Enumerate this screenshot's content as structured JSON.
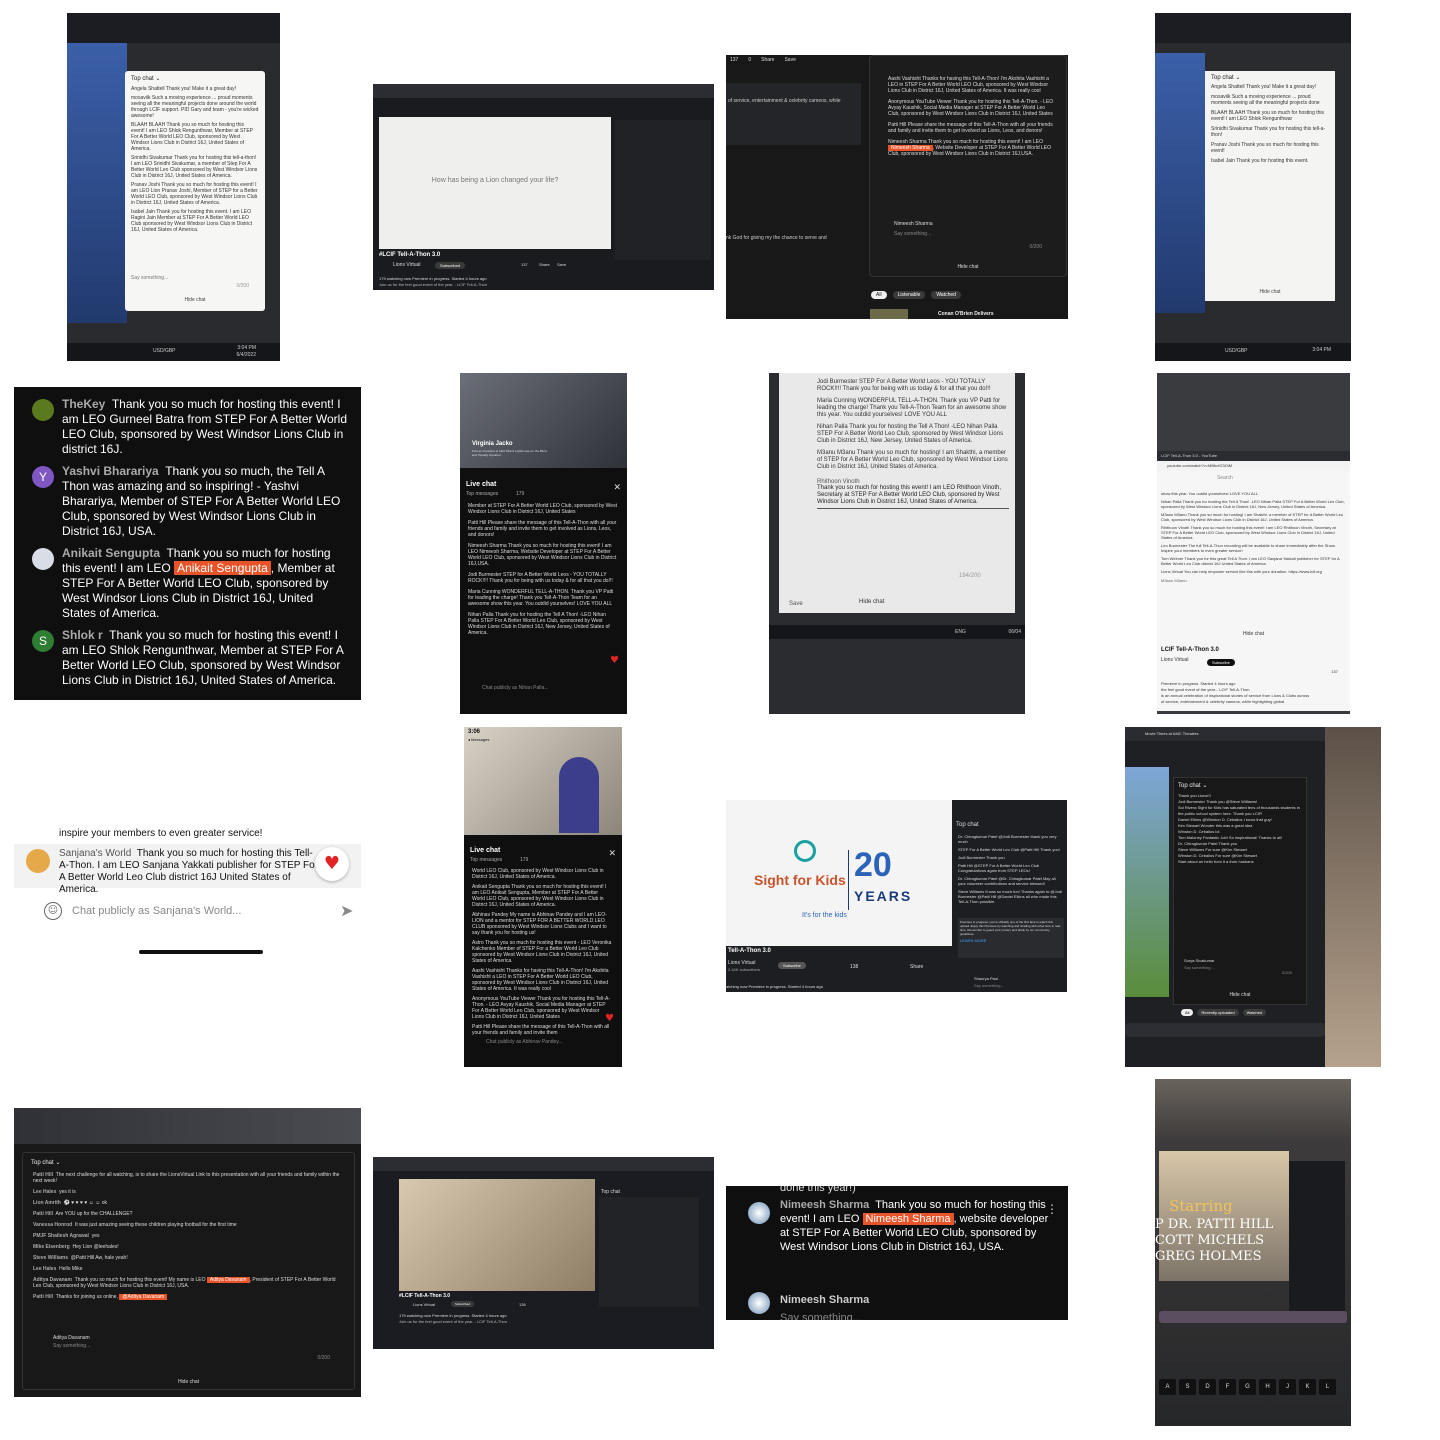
{
  "tile_a": {
    "top_chat": "Top chat ⌄",
    "messages": [
      "Angela Shattell  Thank you! Make it a great day!",
      "mosaviik  Such a moving experience ... proud moments seeing all the meaningful projects done around the world through LCIF support. PID Gary and team - you're wicked awesome!",
      "BLAAH BLAAH  Thank you so much for hosting this event! I am LEO Shlok Rengunthwar, Member at STEP For A Better World LEO Club, sponsored by West Windsor Lions Club in District 16J, United States of America.",
      "Srinidhi Sivakumar  Thank you for hosting this tell-a-thon! I am LEO Srinidhi Sivakumar, a member of Step For A Better World Leo Club sponsored by West Windsor Lions Club in District 16J, United States of America.",
      "Pranav Joshi  Thank you so much for hosting this event! I am LEO Lion Pranav Joshi, Member of STEP for a Better World LEO Club, sponsored by West Windsor Lions Club in District 16J, United States of America.",
      "Isabel Jain  Thank you for hosting this event. I am LEO Ragini Jain Member at STEP For A Better World LEO Club sponsored by West Windsor Lions Club in District 16J, United States of America."
    ],
    "say_something": "Say something...",
    "hide_chat": "Hide chat",
    "counter": "0/200",
    "taskbar_time": "3:04 PM",
    "taskbar_date": "6/4/2022",
    "ticker": "USD/GBP"
  },
  "tile_b": {
    "prompt": "How has being a Lion changed your life?",
    "video_title": "#LCIF Tell-A-Thon 3.0",
    "channel": "Lions Virtual",
    "subscribed": "Subscribed",
    "likes": "137",
    "share": "Share",
    "save": "Save",
    "watching": "179 watching now  Premiere in progress. Started 4 hours ago",
    "desc": "Join us for the feel good event of the year... LCIF Tell-A-Thon"
  },
  "tile_c": {
    "toolbar": [
      "137",
      "0",
      "Share",
      "Save"
    ],
    "desc_snippet": "of service, entertainment & celebrity cameos, while",
    "thanks_snippet": "nk God for giving my the chance to serve and",
    "messages": [
      "Aashi Vashisht  Thanks for having this Tell-A-Thon! I'm Akshita Vashisht a LEO in STEP For A Better World LEO Club, sponsored by West Windsor Lions Club in District 16J, United States of America. It was really cool",
      "Anonymous YouTube Viewer  Thank you for hosting this Tell-A-Thon. - LEO Avyay Kaushik, Social Media Manager at STEP For A Better World Leo Club, sponsored by West Windsor Lions Club in District 16J, United States",
      "Patti Hill  Please share the message of this Tell-A-Thon with all your friends and family and invite them to get involved as Lions, Leos, and donors!"
    ],
    "nimeesh_pre": "Nimeesh Sharma  Thank you so much for hosting this event! I am LEO ",
    "nimeesh_hl": "Nimeesh Sharma",
    "nimeesh_post": ", Website Developer at STEP For A Better World LEO Club, sponsored by West Windsor Lions Club in District 16J,USA.",
    "composer_name": "Nimeesh Sharma",
    "say_something": "Say something...",
    "counter": "0/200",
    "hide_chat": "Hide chat",
    "chips": [
      "All",
      "Listenable",
      "Watched"
    ],
    "next_video": "Conan O'Brien Delivers"
  },
  "tile_d": {
    "top_chat": "Top chat ⌄",
    "lines": [
      "Angela Shattell  Thank you! Make it a great day!",
      "mosaviik  Such a moving experience ... proud moments seeing all the meaningful projects done",
      "BLAAH BLAAH  Thank you so much for hosting this event! I am LEO Shlok Rengunthwar",
      "Srinidhi Sivakumar  Thank you for hosting this tell-a-thon!",
      "Pranav Joshi  Thank you so much for hosting this event!",
      "Isabel Jain  Thank you for hosting this event."
    ],
    "hide_chat": "Hide chat",
    "taskbar_time": "3:04 PM",
    "ticker": "USD/GBP"
  },
  "tile_e": {
    "messages": [
      {
        "name": "TheKey",
        "text": "Thank you so much for hosting this event! I am LEO Gurneel Batra from STEP For A Better World LEO Club, sponsored by West Windsor Lions Club in district 16J.",
        "avatar": "#5b7a1e"
      },
      {
        "name": "Yashvi Bharariya",
        "text": "Thank you so much, the Tell A Thon was amazing and so inspiring! - Yashvi Bharariya, Member of STEP For A Better World LEO Club, sponsored by West Windsor Lions Club in District 16J, USA.",
        "avatar": "#7e57c2",
        "initial": "Y"
      },
      {
        "name": "Anikait Sengupta",
        "pre": "Thank you so much for hosting this event! I am LEO ",
        "hl": "Anikait Sengupta",
        "post": ", Member at STEP For A Better World LEO Club, sponsored by West Windsor Lions Club in District 16J, United States of America.",
        "avatar": "#d9dde6"
      },
      {
        "name": "Shlok r",
        "text": "Thank you so much for hosting this event! I am LEO Shlok Rengunthwar, Member at STEP For A Better World LEO Club, sponsored by West Windsor Lions Club in District 16J, United States of America.",
        "avatar": "#2e7d32",
        "initial": "S"
      }
    ]
  },
  "tile_f": {
    "speaker_name": "Virginia Jacko",
    "speaker_title": "Former President & CEO Miami Lighthouse for the Blind and Visually Impaired",
    "live_chat": "Live chat",
    "top_messages": "Top messages",
    "viewers": "179",
    "messages": [
      "Member at STEP For A Better World LEO Club, sponsored by West Windsor Lions Club in District 16J, United States",
      "Patti Hill  Please share the message of this Tell-A-Thon with all your friends and family and invite them to get involved as Lions, Leos, and donors!",
      "Nimeesh Sharma  Thank you so much for hosting this event! I am LEO Nimeesh Sharma, Website Developer at STEP For A Better World LEO Club, sponsored by West Windsor Lions Club in District 16J,USA.",
      "Jodi Burmester  STEP for A Better World Leos - YOU TOTALLY ROCK!!!! Thank you for being with us today & for all that you do!!!",
      "Maria Cunning  WONDERFUL TELL-A-THON. Thank you VP Patti for leading the charge! Thank you Tell-A-Thon Team for an awesome show this year. You outdid yourselves! LOVE YOU ALL",
      "Nihan Palla  Thank you for hosting the Tell A Thon! -LEO Nihan Palla STEP For A Better World Leo Club, sponsored by West Windsor Lions Club in District 16J, New Jersey, United States of America."
    ],
    "composer": "Chat publicly as Nihan Palla..."
  },
  "tile_g": {
    "messages": [
      "Jodi Burmester  STEP For A Better World Leos - YOU TOTALLY ROCK!!!! Thank you for being with us today & for all that you do!!!",
      "Maria Cunning  WONDERFUL TELL-A-THON. Thank you VP Patti for leading the charge! Thank you Tell-A-Thon Team for an awesome show this year. You outdid yourselves! LOVE YOU ALL",
      "Nihan Palla  Thank you for hosting the Tell A Thon! -LEO Nihan Palla STEP For A Better World Leo Club, sponsored by West Windsor Lions Club in District 16J, New Jersey, United States of America.",
      "M3anu M3anu  Thank you so much for hosting! I am Shakthi, a member of STEP for A Better World Leo Club, sponsored by West Windsor Lions Club in District 16J, United States of America."
    ],
    "composer_name": "Rhithoon Vinoth",
    "composer_text": "Thank you so much for hosting this event! I am LEO Rhithoon Vinoth, Secretary at STEP For A Better World LEO Club, sponsored by West Windsor Lions Club in District 16J, United States of America.",
    "counter": "194/200",
    "save": "Save",
    "hide_chat": "Hide chat",
    "lang": "ENG",
    "date": "06/04"
  },
  "tile_h": {
    "tab_title": "LCIF Tell-A-Thon 3.0 - YouTube",
    "url": "youtube.com/watch?v=MBbcfG3OiM",
    "search": "Search",
    "lines": [
      "show this year. You outdid yourselves! LOVE YOU ALL",
      "Nihan Palla  Thank you for hosting the Tell A Thon! -LEO Nihan Palla STEP For A Better World Leo Club, sponsored by West Windsor Lions Club in District 16J, New Jersey, United States of America.",
      "M3anu M3anu  Thank you so much for hosting! I am Shakthi, a member of STEP for A Better World Leo Club, sponsored by West Windsor Lions Club in District 16J, United States of America.",
      "Rhithoon Vinoth  Thank you so much for hosting this event! I am LEO Rhithoon Vinoth, Secretary at STEP For A Better World LEO Club, sponsored by West Windsor Lions Club in District 16J, United States of America.",
      "Leo Burmester  The full Tell-A-Thon recording will be available to share immediately after the Show. Inspire your members to even greater service!",
      "Tom Welmer  Thank you for this great Tell A Thon. I am LEO Sanjana Yakkati publisher for STEP for A Better World Leo Club district 16J United States of America.",
      "Lions Virtual  You can help empower service like this with your donation. https://www.lcif.org"
    ],
    "composer": "M3anu M3anu",
    "hide_chat": "Hide chat",
    "video_title": "LCIF Tell-A-Thon 3.0",
    "channel": "Lions Virtual",
    "subscribe": "Subscribe",
    "likes": "137",
    "premiere": "Premiere in progress. Started 4 hours ago",
    "desc1": "the feel good event of the year... LCIF Tell-A-Thon",
    "desc2": "is an annual celebration of inspirational stories of service from Lions & Clubs across",
    "desc3": "of service, entertainment & celebrity cameos, while highlighting global"
  },
  "tile_i": {
    "top_text": "inspire your members to even greater service!",
    "name": "Sanjana's World",
    "text": "Thank you so much for hosting this Tell-A-Thon. I am LEO Sanjana Yakkati publisher for STEP For A Better World Leo Club district 16J United States of America.",
    "composer": "Chat publicly as Sanjana's World..."
  },
  "tile_j": {
    "time": "3:06",
    "back": "◂ Messages",
    "live_chat": "Live chat",
    "top_messages": "Top messages",
    "viewers": "179",
    "messages": [
      "World LEO Club, sponsored by West Windsor Lions Club in District 16J, United States of America.",
      "Anikait Sengupta  Thank you so much for hosting this event! I am LEO Anikait Sengupta, Member at STEP For A Better World LEO Club, sponsored by West Windsor Lions Club in District 16J, United States of America.",
      "Abhinav Pandey  My name is Abhinav Pandey and I am LEO-LION and a mentor for STEP FOR A BETTER WORLD LEO CLUB sponsored by West Windsor Lions Clubs and I want to say thank you for hosting us!",
      "Astro  Thank you so much for hosting this event - LEO Veronika Kalchenko Member of STEP For a Better World Leo Club sponsored by West Windsor Lions Club in District 16J, United States of America.",
      "Aashi Vashisht  Thanks for having this Tell-A-Thon! I'm Akshita Vashisht a LEO in STEP For A Better World LEO Club, sponsored by West Windsor Lions Club in District 16J, United States of America. It was really cool",
      "Anonymous YouTube Viewer  Thank you for hosting this Tell-A-Thon. - LEO Avyay Kaushik, Social Media Manager at STEP For A Better World Leo Club, sponsored by West Windsor Lions Club in District 16J, United States",
      "Patti Hill  Please share the message of this Tell-A-Thon with all your friends and family and invite them"
    ],
    "composer": "Chat publicly as Abhinav Pandey..."
  },
  "tile_k": {
    "brand": "Sight for Kids",
    "tagline": "It's for the kids",
    "years_num": "20",
    "years": "YEARS",
    "top_chat": "Top chat",
    "chat": [
      "Dr. Chiragkumar Patel  @Jodi Burmester thank you very much",
      "STEP For A Better World Leo Club  @Patti Hill Thank you!",
      "Jodi Burmester  Thank you",
      "Patti Hill  @STEP For A Better World Leo Club  Congratulations again from STEP LEOs!",
      "Dr. Chiragkumar Patel  @Dr. Chiragkumar Patel  May all your volunteer contributions and service blessed!",
      "Steve Williams  It was so much fun! Thanks again to @Jodi Burmester @Patti Hill @Daniel Elkins all who made this Tell-A-Thon possible."
    ],
    "notice": "Premiere in progress: you're officially one of the first fans to watch this upload. Enjoy this Premiere by watching and chatting with other fans in real-time. Remember to guard your privacy and abide by our community guidelines.",
    "learn_more": "LEARN MORE",
    "composer_name": "Shaurya Paul",
    "say_something": "Say something...",
    "video_title": "Tell-A-Thon 3.0",
    "channel": "Lions Virtual",
    "subs": "2.44K subscribers",
    "subscribe": "Subscribe",
    "likes": "138",
    "share": "Share",
    "premiere": "atching now  Premiere in progress. Started 4 hours ago"
  },
  "tile_l": {
    "title": "Movie Times at AMC Theatres",
    "top_chat": "Top chat ⌄",
    "chat": [
      "Thank you Lions!!!",
      "Jodi Burmester  Thank you @Steve Williams!",
      "Sol Rivera  Sight for Kids has saturated tens of thousands students in the public school system here. Thank you LCIF!",
      "Daniel Elkins  @Winston D. Ceballos I know that guy!",
      "Kim Stewart  Wonder this was a great idea",
      "Winston D. Ceballos  lol",
      "Tom Maloney  Fantastic Job! So inspirational! Thanks to all!",
      "Dr. Chiragkumar Patel  Thank you",
      "Steve Williams  For sure @Kim Stewart",
      "Winston D. Ceballos  For sure @Kim Stewart",
      "Start about an hello from it a from husbans"
    ],
    "composer_name": "Surya Sivakumar",
    "say_something": "Say something...",
    "counter": "0/200",
    "hide_chat": "Hide chat",
    "chips": [
      "All",
      "Recently uploaded",
      "Watched"
    ]
  },
  "tile_m": {
    "top_chat": "Top chat ⌄",
    "chat": [
      {
        "name": "Patti Hill",
        "text": "The next challenge for all watching, is to share the LionsVirtual Link to this presentation with all your friends and family within the next week!"
      },
      {
        "name": "Lee Hales",
        "text": "yes it is"
      },
      {
        "name": "Lion Amrith",
        "text": "⚽ ♥ ♥ ♥ ♥ ☺ ☺ ok"
      },
      {
        "name": "Patti Hill",
        "text": "Are YOU up for the CHALLENGE?"
      },
      {
        "name": "Vanessa Honrod",
        "text": "It was just amazing seeing these children playing football for the first time"
      },
      {
        "name": "PMJF Shailesh Agrawal",
        "text": "yes"
      },
      {
        "name": "Mike Eisenberg",
        "text": "Hey Lion @leehales!"
      },
      {
        "name": "Steve Williams",
        "text": "@Patti Hill Aw, hale yeah!"
      },
      {
        "name": "Lee Hales",
        "text": "Hello Mike"
      }
    ],
    "aditya_name": "Aditya Davanam",
    "aditya_pre": "Thank you so much for hosting this event! My name is LEO ",
    "aditya_hl": "Aditya Davanam",
    "aditya_post": ", President of STEP For A Better World Leo Club, sponsored by West Windsor Lions Club in District 16J, USA.",
    "patti_final_pre": "Thanks for joining us online, ",
    "patti_final_hl": "@Aditya Davanam",
    "composer_name": "Aditya Davanam",
    "say_something": "Say something...",
    "counter": "0/200",
    "hide_chat": "Hide chat"
  },
  "tile_n": {
    "top_chat": "Top chat",
    "watching": "179 watching now  Premiere in progress. Started 4 hours ago",
    "video_title": "#LCIF Tell-A-Thon 3.0",
    "channel": "Lions Virtual",
    "subscribed": "Subscribed",
    "likes": "136",
    "desc": "Join us for the feel good event of the year... LCIF Tell-A-Thon"
  },
  "tile_o": {
    "top_text": "done this year!)",
    "name": "Nimeesh Sharma",
    "pre": "Thank you so much for hosting this event! I am LEO ",
    "hl": "Nimeesh Sharma",
    "post": ", website developer at STEP For A Better World LEO Club, sponsored by West Windsor Lions Club in District 16J, USA.",
    "composer_name": "Nimeesh Sharma",
    "say_something": "Say something..."
  },
  "tile_p": {
    "overlay_title": "Starring",
    "credits": [
      "P DR. PATTI HILL",
      "COTT MICHELS",
      "GREG HOLMES"
    ],
    "keys": [
      "A",
      "S",
      "D",
      "F",
      "G",
      "H",
      "J",
      "K",
      "L"
    ]
  }
}
